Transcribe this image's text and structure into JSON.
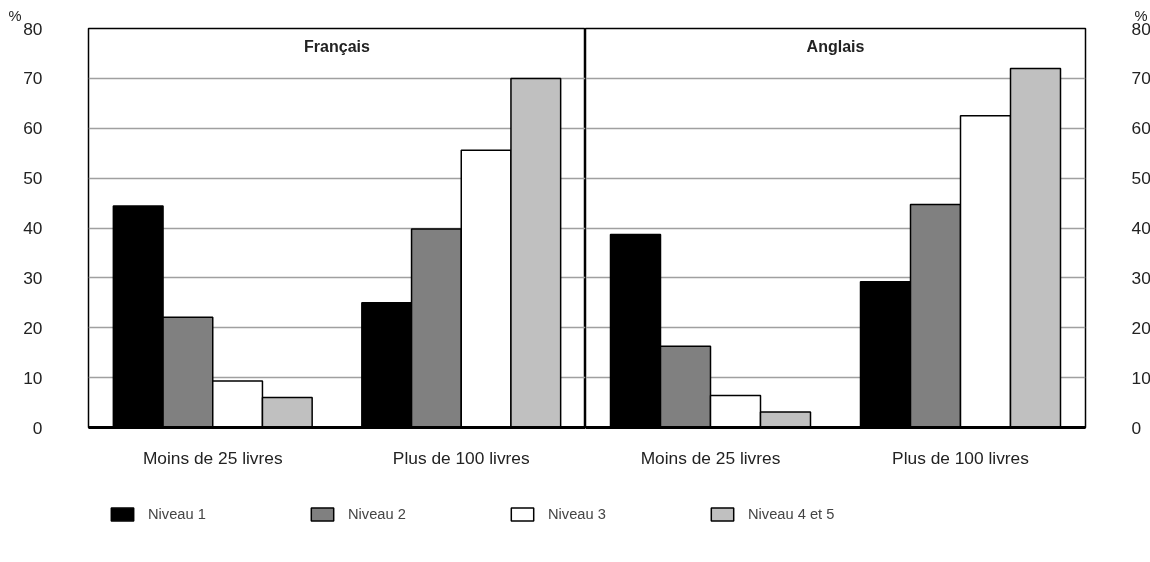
{
  "chart_data": [
    {
      "type": "bar",
      "title": "Français",
      "ylabel": "%",
      "categories": [
        "Moins de 25 livres",
        "Plus de 100 livres"
      ],
      "ylim": [
        0,
        80
      ],
      "yticks": [
        0,
        10,
        20,
        30,
        40,
        50,
        60,
        70,
        80
      ],
      "grid": "y",
      "legend": "bottom",
      "series": [
        {
          "name": "Niveau 1",
          "color": "#000000",
          "values": [
            44.4,
            25.0
          ]
        },
        {
          "name": "Niveau 2",
          "color": "#808080",
          "values": [
            22.1,
            39.8
          ]
        },
        {
          "name": "Niveau 3",
          "color": "#ffffff",
          "values": [
            9.3,
            55.6
          ]
        },
        {
          "name": "Niveau 4 et 5",
          "color": "#c0c0c0",
          "values": [
            6.0,
            70.0
          ]
        }
      ]
    },
    {
      "type": "bar",
      "title": "Anglais",
      "y2label": "%",
      "categories": [
        "Moins de 25 livres",
        "Plus de 100 livres"
      ],
      "y2lim": [
        0,
        80
      ],
      "y2ticks": [
        0,
        10,
        20,
        30,
        40,
        50,
        60,
        70,
        80
      ],
      "grid": "y",
      "series": [
        {
          "color": "#000000",
          "axis": "y2",
          "values": [
            38.7,
            29.2
          ]
        },
        {
          "color": "#808080",
          "axis": "y2",
          "values": [
            16.3,
            44.7
          ]
        },
        {
          "color": "#ffffff",
          "axis": "y2",
          "values": [
            6.4,
            62.5
          ]
        },
        {
          "color": "#c0c0c0",
          "axis": "y2",
          "values": [
            3.1,
            72.0
          ]
        }
      ]
    }
  ]
}
